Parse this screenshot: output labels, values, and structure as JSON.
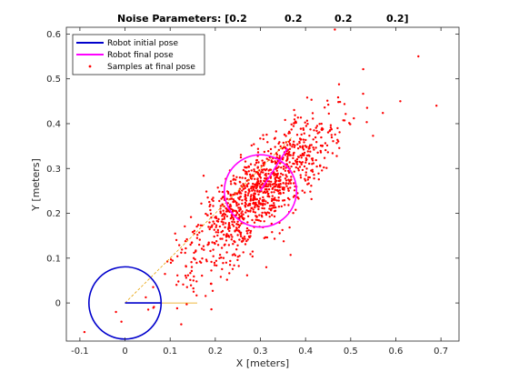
{
  "chart_data": {
    "type": "scatter",
    "title_parts": [
      "Noise Parameters: [0.2",
      "0.2",
      "0.2",
      "0.2]"
    ],
    "xlabel": "X [meters]",
    "ylabel": "Y [meters]",
    "xlim": [
      -0.13,
      0.74
    ],
    "ylim": [
      -0.085,
      0.615
    ],
    "x_ticks": [
      "-0.1",
      "0",
      "0.1",
      "0.2",
      "0.3",
      "0.4",
      "0.5",
      "0.6",
      "0.7"
    ],
    "x_tick_values": [
      -0.1,
      0,
      0.1,
      0.2,
      0.3,
      0.4,
      0.5,
      0.6,
      0.7
    ],
    "y_ticks": [
      "0",
      "0.1",
      "0.2",
      "0.3",
      "0.4",
      "0.5",
      "0.6"
    ],
    "y_tick_values": [
      0,
      0.1,
      0.2,
      0.3,
      0.4,
      0.5,
      0.6
    ],
    "grid": false,
    "legend_position": "top-left",
    "legend": [
      {
        "label": "Robot initial pose",
        "color": "#0000cc",
        "kind": "line"
      },
      {
        "label": "Robot final pose",
        "color": "#ff00ff",
        "kind": "line"
      },
      {
        "label": "Samples at final pose",
        "color": "#ff0000",
        "kind": "marker"
      }
    ],
    "initial_pose": {
      "x": 0,
      "y": 0,
      "radius": 0.08,
      "heading_x": 0.08,
      "heading_y": 0
    },
    "final_pose": {
      "x": 0.3,
      "y": 0.25,
      "radius": 0.08,
      "heading_x": 0.36,
      "heading_y": 0.345
    },
    "path": {
      "color": "#e8a000",
      "x": [
        0,
        0.16
      ],
      "y": [
        0,
        0
      ],
      "x2": [
        0,
        0.37
      ],
      "y2": [
        0,
        0.37
      ]
    },
    "samples": {
      "color": "#ff0000",
      "cluster_center": [
        0.3,
        0.25
      ],
      "count": 1100,
      "notable_points": [
        {
          "x": -0.09,
          "y": -0.065
        },
        {
          "x": -0.02,
          "y": -0.02
        },
        {
          "x": 0.465,
          "y": 0.61
        },
        {
          "x": 0.65,
          "y": 0.55
        },
        {
          "x": 0.69,
          "y": 0.44
        },
        {
          "x": 0.61,
          "y": 0.45
        }
      ]
    }
  }
}
